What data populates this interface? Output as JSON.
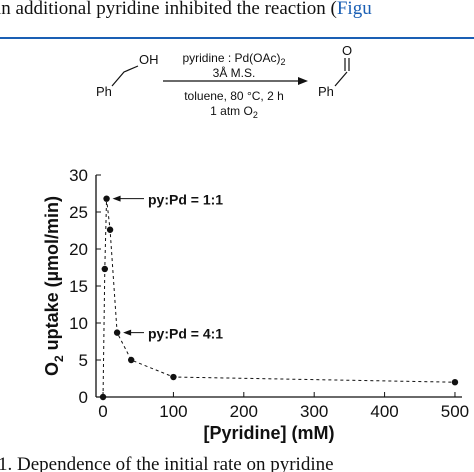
{
  "header_text": [
    "in additional pyridine inhibited the reaction (",
    "Figu"
  ],
  "scheme": {
    "reactant_group": "OH",
    "reactant_ph": "Ph",
    "conditions": [
      [
        "pyridine : Pd(OAc)",
        "2"
      ],
      [
        "3Å M.S."
      ],
      [
        "toluene, 80 °C, 2 h"
      ],
      [
        "1 atm O",
        "2"
      ]
    ],
    "product_group": "O",
    "product_ph": "Ph"
  },
  "chart_data": {
    "type": "line",
    "x": [
      0,
      2.5,
      5,
      10,
      20,
      40,
      100,
      500
    ],
    "values": [
      0,
      17.3,
      26.8,
      22.6,
      8.7,
      5.0,
      2.7,
      2.0
    ],
    "color": "#111111",
    "xlim": [
      -10,
      510
    ],
    "xticks": [
      0,
      100,
      200,
      300,
      400,
      500
    ],
    "ylim": [
      0,
      30
    ],
    "yticks": [
      0,
      5,
      10,
      15,
      20,
      25,
      30
    ],
    "xlabel": "[Pyridine] (mM)",
    "ylabel": [
      "O",
      "2",
      " uptake (µmol/min)"
    ],
    "annotations": [
      "py:Pd = 1:1",
      "py:Pd = 4:1"
    ]
  },
  "caption": "1. Dependence of the initial rate on pyridine"
}
